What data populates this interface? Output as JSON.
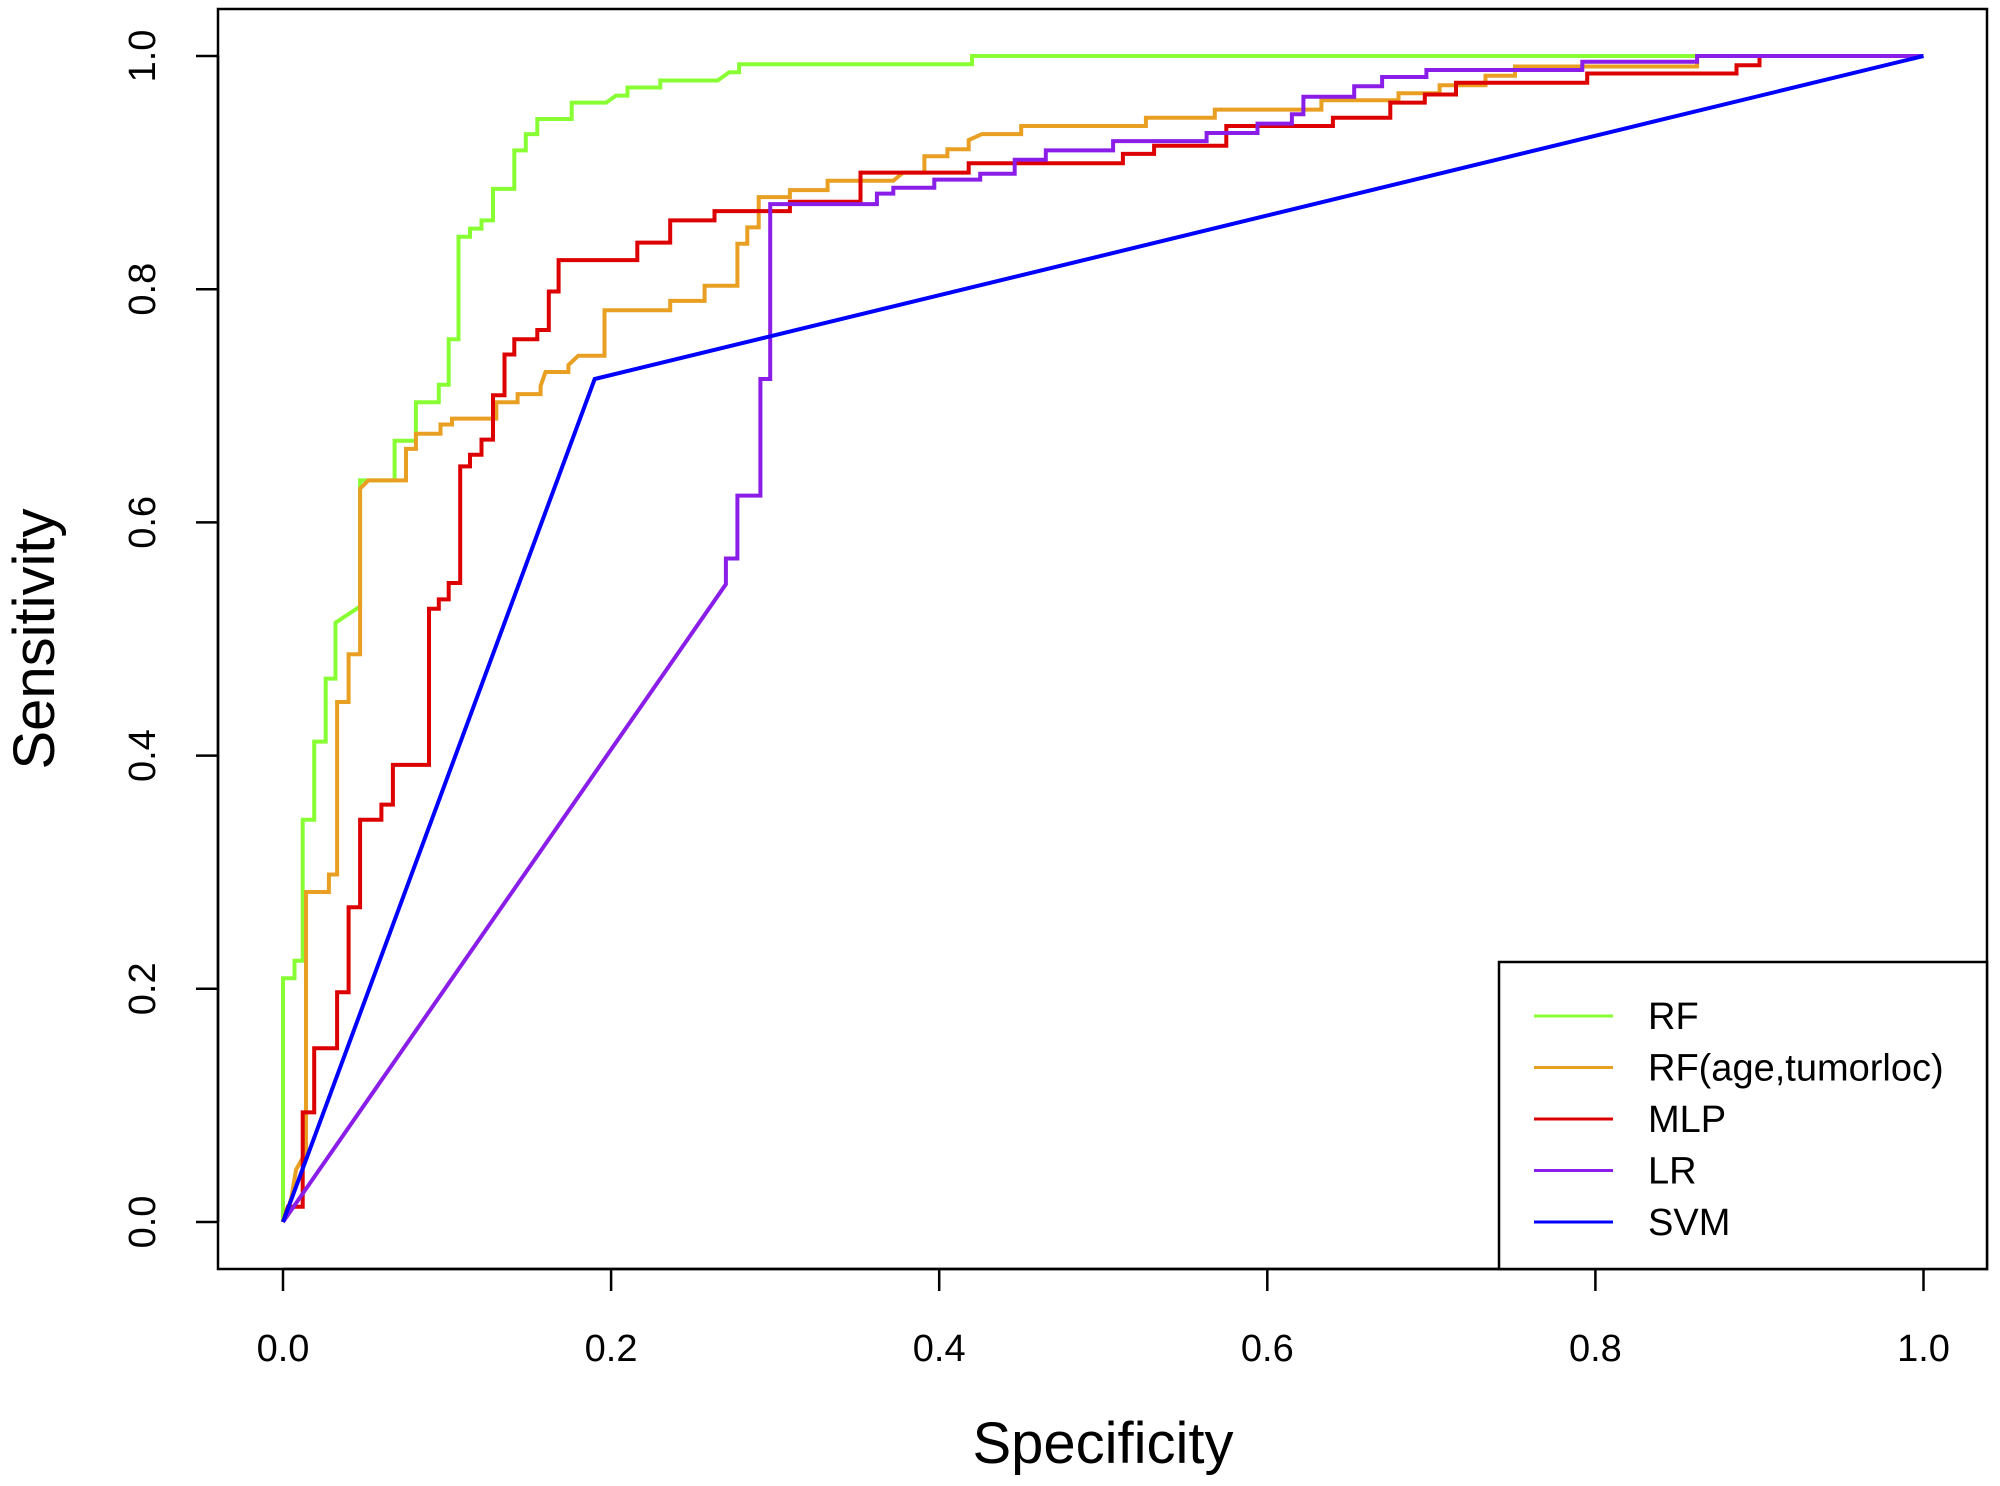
{
  "chart_data": {
    "type": "line",
    "title": "",
    "xlabel": "Specificity",
    "ylabel": "Sensitivity",
    "xlim": [
      0,
      1
    ],
    "ylim": [
      0,
      1
    ],
    "xticks": [
      "0.0",
      "0.2",
      "0.4",
      "0.6",
      "0.8",
      "1.0"
    ],
    "yticks": [
      "0.0",
      "0.2",
      "0.4",
      "0.6",
      "0.8",
      "1.0"
    ],
    "grid": false,
    "legend_position": "bottom-right",
    "series": [
      {
        "name": "RF",
        "color": "#88ff33",
        "points": [
          [
            0,
            0
          ],
          [
            0,
            0.209
          ],
          [
            0.007,
            0.209
          ],
          [
            0.007,
            0.224
          ],
          [
            0.012,
            0.224
          ],
          [
            0.012,
            0.345
          ],
          [
            0.019,
            0.345
          ],
          [
            0.019,
            0.412
          ],
          [
            0.026,
            0.412
          ],
          [
            0.026,
            0.466
          ],
          [
            0.032,
            0.466
          ],
          [
            0.032,
            0.514
          ],
          [
            0.047,
            0.528
          ],
          [
            0.047,
            0.636
          ],
          [
            0.068,
            0.636
          ],
          [
            0.068,
            0.67
          ],
          [
            0.081,
            0.67
          ],
          [
            0.081,
            0.703
          ],
          [
            0.095,
            0.703
          ],
          [
            0.095,
            0.718
          ],
          [
            0.101,
            0.718
          ],
          [
            0.101,
            0.757
          ],
          [
            0.107,
            0.757
          ],
          [
            0.107,
            0.845
          ],
          [
            0.114,
            0.845
          ],
          [
            0.114,
            0.852
          ],
          [
            0.121,
            0.852
          ],
          [
            0.121,
            0.859
          ],
          [
            0.128,
            0.859
          ],
          [
            0.128,
            0.886
          ],
          [
            0.141,
            0.886
          ],
          [
            0.141,
            0.919
          ],
          [
            0.148,
            0.919
          ],
          [
            0.148,
            0.933
          ],
          [
            0.155,
            0.933
          ],
          [
            0.155,
            0.946
          ],
          [
            0.176,
            0.946
          ],
          [
            0.176,
            0.96
          ],
          [
            0.197,
            0.96
          ],
          [
            0.203,
            0.966
          ],
          [
            0.21,
            0.966
          ],
          [
            0.21,
            0.973
          ],
          [
            0.23,
            0.973
          ],
          [
            0.23,
            0.979
          ],
          [
            0.265,
            0.979
          ],
          [
            0.272,
            0.986
          ],
          [
            0.278,
            0.986
          ],
          [
            0.278,
            0.993
          ],
          [
            0.42,
            0.993
          ],
          [
            0.42,
            1.0
          ],
          [
            1,
            1
          ]
        ]
      },
      {
        "name": "RF(age,tumorloc)",
        "color": "#e89f22",
        "points": [
          [
            0,
            0
          ],
          [
            0.005,
            0.02
          ],
          [
            0.008,
            0.045
          ],
          [
            0.012,
            0.055
          ],
          [
            0.014,
            0.055
          ],
          [
            0.014,
            0.283
          ],
          [
            0.028,
            0.283
          ],
          [
            0.028,
            0.298
          ],
          [
            0.033,
            0.298
          ],
          [
            0.033,
            0.446
          ],
          [
            0.04,
            0.446
          ],
          [
            0.04,
            0.487
          ],
          [
            0.047,
            0.487
          ],
          [
            0.047,
            0.629
          ],
          [
            0.052,
            0.636
          ],
          [
            0.075,
            0.636
          ],
          [
            0.075,
            0.663
          ],
          [
            0.081,
            0.663
          ],
          [
            0.081,
            0.676
          ],
          [
            0.096,
            0.676
          ],
          [
            0.096,
            0.684
          ],
          [
            0.103,
            0.684
          ],
          [
            0.103,
            0.689
          ],
          [
            0.13,
            0.689
          ],
          [
            0.13,
            0.703
          ],
          [
            0.143,
            0.703
          ],
          [
            0.143,
            0.71
          ],
          [
            0.157,
            0.71
          ],
          [
            0.157,
            0.717
          ],
          [
            0.16,
            0.729
          ],
          [
            0.174,
            0.729
          ],
          [
            0.174,
            0.735
          ],
          [
            0.18,
            0.743
          ],
          [
            0.196,
            0.743
          ],
          [
            0.196,
            0.782
          ],
          [
            0.236,
            0.782
          ],
          [
            0.236,
            0.79
          ],
          [
            0.257,
            0.79
          ],
          [
            0.257,
            0.803
          ],
          [
            0.277,
            0.803
          ],
          [
            0.277,
            0.839
          ],
          [
            0.283,
            0.839
          ],
          [
            0.283,
            0.853
          ],
          [
            0.29,
            0.853
          ],
          [
            0.29,
            0.879
          ],
          [
            0.309,
            0.879
          ],
          [
            0.309,
            0.885
          ],
          [
            0.332,
            0.885
          ],
          [
            0.332,
            0.893
          ],
          [
            0.372,
            0.893
          ],
          [
            0.378,
            0.9
          ],
          [
            0.391,
            0.9
          ],
          [
            0.391,
            0.914
          ],
          [
            0.405,
            0.914
          ],
          [
            0.405,
            0.92
          ],
          [
            0.418,
            0.92
          ],
          [
            0.418,
            0.928
          ],
          [
            0.426,
            0.933
          ],
          [
            0.45,
            0.933
          ],
          [
            0.45,
            0.94
          ],
          [
            0.526,
            0.94
          ],
          [
            0.526,
            0.947
          ],
          [
            0.568,
            0.947
          ],
          [
            0.568,
            0.954
          ],
          [
            0.633,
            0.954
          ],
          [
            0.633,
            0.962
          ],
          [
            0.68,
            0.962
          ],
          [
            0.68,
            0.968
          ],
          [
            0.705,
            0.968
          ],
          [
            0.705,
            0.975
          ],
          [
            0.733,
            0.975
          ],
          [
            0.733,
            0.983
          ],
          [
            0.751,
            0.983
          ],
          [
            0.751,
            0.991
          ],
          [
            0.862,
            0.991
          ],
          [
            0.862,
            1.0
          ],
          [
            1,
            1
          ]
        ]
      },
      {
        "name": "MLP",
        "color": "#dd0000",
        "points": [
          [
            0,
            0
          ],
          [
            0.003,
            0.013
          ],
          [
            0.012,
            0.013
          ],
          [
            0.012,
            0.094
          ],
          [
            0.019,
            0.094
          ],
          [
            0.019,
            0.149
          ],
          [
            0.033,
            0.149
          ],
          [
            0.033,
            0.197
          ],
          [
            0.04,
            0.197
          ],
          [
            0.04,
            0.27
          ],
          [
            0.047,
            0.27
          ],
          [
            0.047,
            0.345
          ],
          [
            0.06,
            0.345
          ],
          [
            0.06,
            0.358
          ],
          [
            0.067,
            0.358
          ],
          [
            0.067,
            0.392
          ],
          [
            0.089,
            0.392
          ],
          [
            0.089,
            0.526
          ],
          [
            0.095,
            0.526
          ],
          [
            0.095,
            0.534
          ],
          [
            0.101,
            0.534
          ],
          [
            0.101,
            0.548
          ],
          [
            0.108,
            0.548
          ],
          [
            0.108,
            0.648
          ],
          [
            0.114,
            0.648
          ],
          [
            0.114,
            0.658
          ],
          [
            0.121,
            0.658
          ],
          [
            0.121,
            0.671
          ],
          [
            0.128,
            0.671
          ],
          [
            0.128,
            0.709
          ],
          [
            0.135,
            0.709
          ],
          [
            0.135,
            0.744
          ],
          [
            0.141,
            0.744
          ],
          [
            0.141,
            0.757
          ],
          [
            0.155,
            0.757
          ],
          [
            0.155,
            0.765
          ],
          [
            0.162,
            0.765
          ],
          [
            0.162,
            0.798
          ],
          [
            0.168,
            0.798
          ],
          [
            0.168,
            0.825
          ],
          [
            0.216,
            0.825
          ],
          [
            0.216,
            0.84
          ],
          [
            0.236,
            0.84
          ],
          [
            0.236,
            0.859
          ],
          [
            0.263,
            0.859
          ],
          [
            0.263,
            0.867
          ],
          [
            0.309,
            0.867
          ],
          [
            0.309,
            0.875
          ],
          [
            0.352,
            0.875
          ],
          [
            0.352,
            0.9
          ],
          [
            0.418,
            0.9
          ],
          [
            0.418,
            0.908
          ],
          [
            0.512,
            0.908
          ],
          [
            0.512,
            0.916
          ],
          [
            0.531,
            0.916
          ],
          [
            0.531,
            0.923
          ],
          [
            0.575,
            0.923
          ],
          [
            0.575,
            0.94
          ],
          [
            0.64,
            0.94
          ],
          [
            0.64,
            0.947
          ],
          [
            0.675,
            0.947
          ],
          [
            0.675,
            0.96
          ],
          [
            0.696,
            0.96
          ],
          [
            0.696,
            0.967
          ],
          [
            0.715,
            0.967
          ],
          [
            0.715,
            0.977
          ],
          [
            0.795,
            0.977
          ],
          [
            0.795,
            0.985
          ],
          [
            0.886,
            0.985
          ],
          [
            0.886,
            0.992
          ],
          [
            0.9,
            0.992
          ],
          [
            0.9,
            1.0
          ],
          [
            1,
            1
          ]
        ]
      },
      {
        "name": "LR",
        "color": "#8a1ee8",
        "points": [
          [
            0,
            0
          ],
          [
            0.27,
            0.547
          ],
          [
            0.27,
            0.569
          ],
          [
            0.277,
            0.569
          ],
          [
            0.277,
            0.623
          ],
          [
            0.291,
            0.623
          ],
          [
            0.291,
            0.723
          ],
          [
            0.297,
            0.723
          ],
          [
            0.297,
            0.873
          ],
          [
            0.362,
            0.873
          ],
          [
            0.362,
            0.882
          ],
          [
            0.372,
            0.882
          ],
          [
            0.372,
            0.887
          ],
          [
            0.397,
            0.887
          ],
          [
            0.397,
            0.894
          ],
          [
            0.425,
            0.894
          ],
          [
            0.425,
            0.899
          ],
          [
            0.446,
            0.899
          ],
          [
            0.446,
            0.911
          ],
          [
            0.465,
            0.911
          ],
          [
            0.465,
            0.919
          ],
          [
            0.506,
            0.919
          ],
          [
            0.506,
            0.927
          ],
          [
            0.563,
            0.927
          ],
          [
            0.563,
            0.934
          ],
          [
            0.594,
            0.934
          ],
          [
            0.594,
            0.942
          ],
          [
            0.615,
            0.942
          ],
          [
            0.615,
            0.95
          ],
          [
            0.622,
            0.95
          ],
          [
            0.622,
            0.965
          ],
          [
            0.653,
            0.965
          ],
          [
            0.653,
            0.974
          ],
          [
            0.67,
            0.974
          ],
          [
            0.67,
            0.982
          ],
          [
            0.697,
            0.982
          ],
          [
            0.697,
            0.988
          ],
          [
            0.792,
            0.988
          ],
          [
            0.792,
            0.995
          ],
          [
            0.862,
            0.995
          ],
          [
            0.862,
            1.0
          ],
          [
            1,
            1
          ]
        ]
      },
      {
        "name": "SVM",
        "color": "#0000ff",
        "points": [
          [
            0,
            0
          ],
          [
            0.19,
            0.723
          ],
          [
            1,
            1
          ]
        ]
      }
    ]
  }
}
